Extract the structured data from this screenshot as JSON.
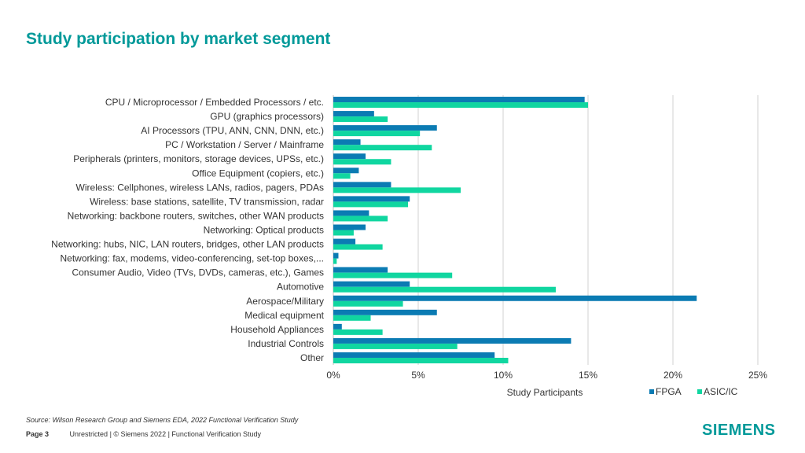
{
  "title": "Study participation by market segment",
  "source": "Source:  Wilson Research Group and Siemens EDA, 2022 Functional Verification Study",
  "footer": {
    "page": "Page 3",
    "text": "Unrestricted | © Siemens 2022 |  Functional Verification Study"
  },
  "logo": "SIEMENS",
  "colors": {
    "fpga": "#0b7bb3",
    "asic": "#10d6a0",
    "title": "#009999"
  },
  "chart_data": {
    "type": "bar",
    "orientation": "horizontal",
    "xlabel": "Study Participants",
    "xlim": [
      0,
      25
    ],
    "xticks": [
      "0%",
      "5%",
      "10%",
      "15%",
      "20%",
      "25%"
    ],
    "grid": true,
    "legend_position": "bottom-right",
    "categories": [
      "CPU / Microprocessor / Embedded Processors / etc.",
      "GPU (graphics processors)",
      "AI Processors (TPU, ANN, CNN, DNN, etc.)",
      "PC / Workstation / Server / Mainframe",
      "Peripherals (printers, monitors, storage devices, UPSs, etc.)",
      "Office Equipment (copiers, etc.)",
      "Wireless: Cellphones, wireless LANs, radios, pagers, PDAs",
      "Wireless: base stations, satellite, TV transmission, radar",
      "Networking: backbone routers, switches, other WAN products",
      "Networking: Optical products",
      "Networking: hubs, NIC, LAN routers, bridges, other LAN products",
      "Networking: fax, modems, video-conferencing, set-top boxes,...",
      "Consumer Audio, Video (TVs, DVDs, cameras, etc.), Games",
      "Automotive",
      "Aerospace/Military",
      "Medical equipment",
      "Household Appliances",
      "Industrial Controls",
      "Other"
    ],
    "series": [
      {
        "name": "FPGA",
        "values": [
          14.8,
          2.4,
          6.1,
          1.6,
          1.9,
          1.5,
          3.4,
          4.5,
          2.1,
          1.9,
          1.3,
          0.3,
          3.2,
          4.5,
          21.4,
          6.1,
          0.5,
          14.0,
          9.5
        ]
      },
      {
        "name": "ASIC/IC",
        "values": [
          15.0,
          3.2,
          5.1,
          5.8,
          3.4,
          1.0,
          7.5,
          4.4,
          3.2,
          1.2,
          2.9,
          0.2,
          7.0,
          13.1,
          4.1,
          2.2,
          2.9,
          7.3,
          10.3
        ]
      }
    ]
  }
}
